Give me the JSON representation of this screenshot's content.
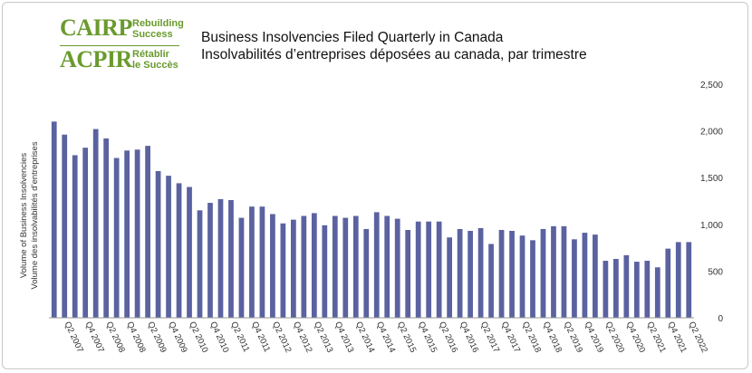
{
  "logo": {
    "en_mark": "CAIRP",
    "en_tag_1": "Rebuilding",
    "en_tag_2": "Success",
    "fr_mark": "ACPIR",
    "fr_tag_1": "Rétablir",
    "fr_tag_2": "le Succès",
    "color": "#6a9a2e"
  },
  "title_en": "Business Insolvencies Filed Quarterly in Canada",
  "title_fr": "Insolvabilités d’entreprises déposées au canada, par trimestre",
  "chart_data": {
    "type": "bar",
    "ylabel_en": "Volume of Business Insolvencies",
    "ylabel_fr": "Volume des insolvabilités d’entreprises",
    "ylim": [
      0,
      2500
    ],
    "yticks": [
      0,
      500,
      1000,
      1500,
      2000,
      2500
    ],
    "ytick_labels": [
      "0",
      "500",
      "1,000",
      "1,500",
      "2,000",
      "2,500"
    ],
    "y_axis_side": "right",
    "grid": false,
    "bar_color": "#5a62a0",
    "categories": [
      "Q1 2007",
      "Q2 2007",
      "Q3 2007",
      "Q4 2007",
      "Q1 2008",
      "Q2 2008",
      "Q3 2008",
      "Q4 2008",
      "Q1 2009",
      "Q2 2009",
      "Q3 2009",
      "Q4 2009",
      "Q1 2010",
      "Q2 2010",
      "Q3 2010",
      "Q4 2010",
      "Q1 2011",
      "Q2 2011",
      "Q3 2011",
      "Q4 2011",
      "Q1 2012",
      "Q2 2012",
      "Q3 2012",
      "Q4 2012",
      "Q1 2013",
      "Q2 2013",
      "Q3 2013",
      "Q4 2013",
      "Q1 2014",
      "Q2 2014",
      "Q3 2014",
      "Q4 2014",
      "Q1 2015",
      "Q2 2015",
      "Q3 2015",
      "Q4 2015",
      "Q1 2016",
      "Q2 2016",
      "Q3 2016",
      "Q4 2016",
      "Q1 2017",
      "Q2 2017",
      "Q3 2017",
      "Q4 2017",
      "Q1 2018",
      "Q2 2018",
      "Q3 2018",
      "Q4 2018",
      "Q1 2019",
      "Q2 2019",
      "Q3 2019",
      "Q4 2019",
      "Q1 2020",
      "Q2 2020",
      "Q3 2020",
      "Q4 2020",
      "Q1 2021",
      "Q2 2021",
      "Q3 2021",
      "Q4 2021",
      "Q1 2022",
      "Q2 2022"
    ],
    "xtick_labels": [
      "Q2 2007",
      "Q4 2007",
      "Q2 2008",
      "Q4 2008",
      "Q2 2009",
      "Q4 2009",
      "Q2 2010",
      "Q4 2010",
      "Q2 2011",
      "Q4 2011",
      "Q2 2012",
      "Q4 2012",
      "Q2 2013",
      "Q4 2013",
      "Q2 2014",
      "Q4 2014",
      "Q2 2015",
      "Q4 2015",
      "Q2 2016",
      "Q4 2016",
      "Q2 2017",
      "Q4 2017",
      "Q2 2018",
      "Q4 2018",
      "Q2 2019",
      "Q4 2019",
      "Q2 2020",
      "Q4 2020",
      "Q2 2021",
      "Q4 2021",
      "Q2 2022"
    ],
    "values": [
      2100,
      1960,
      1740,
      1820,
      2020,
      1920,
      1710,
      1790,
      1800,
      1840,
      1570,
      1520,
      1440,
      1400,
      1150,
      1230,
      1270,
      1260,
      1070,
      1190,
      1190,
      1110,
      1010,
      1050,
      1090,
      1120,
      990,
      1090,
      1070,
      1090,
      950,
      1130,
      1090,
      1060,
      940,
      1030,
      1030,
      1030,
      860,
      950,
      930,
      960,
      790,
      940,
      930,
      880,
      830,
      950,
      980,
      980,
      840,
      910,
      890,
      610,
      630,
      670,
      600,
      610,
      540,
      740,
      810,
      810
    ]
  }
}
